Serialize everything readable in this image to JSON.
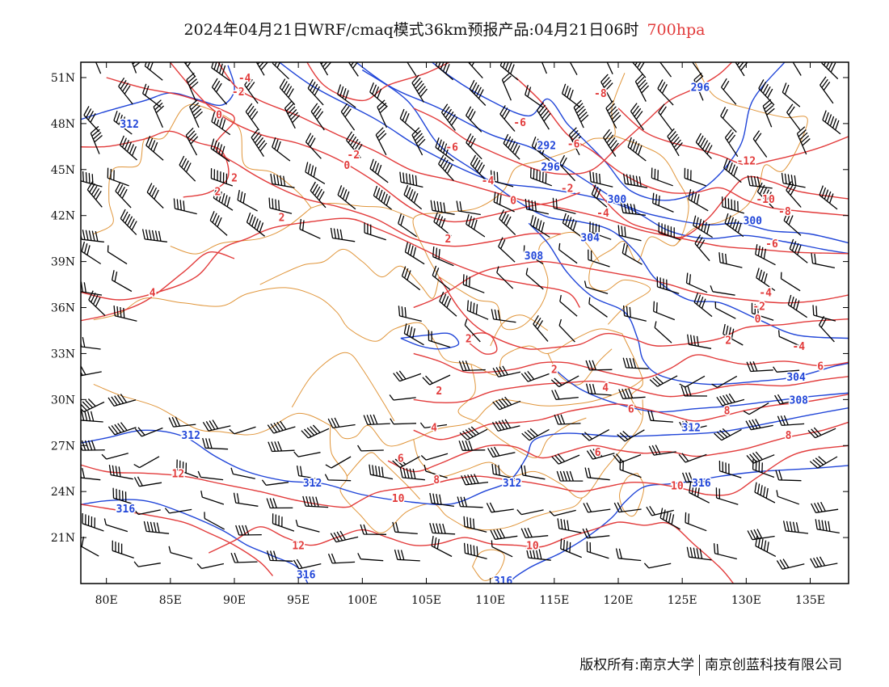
{
  "title": {
    "main": "2024年04月21日WRF/cmaq模式36km预报产品:04月21日06时",
    "level": "700hpa"
  },
  "footer": {
    "left": "版权所有:南京大学",
    "right": "南京创蓝科技有限公司"
  },
  "colors": {
    "temperature_contour": "#e23b3b",
    "height_contour": "#2045d8",
    "boundary": "#e0953a",
    "wind_barb": "#000000"
  },
  "map": {
    "lon_range": [
      78,
      138
    ],
    "lat_range": [
      18,
      52
    ],
    "lon_ticks": [
      "80E",
      "85E",
      "90E",
      "95E",
      "100E",
      "105E",
      "110E",
      "115E",
      "120E",
      "125E",
      "130E",
      "135E"
    ],
    "lat_ticks": [
      "51N",
      "48N",
      "45N",
      "42N",
      "39N",
      "36N",
      "33N",
      "30N",
      "27N",
      "24N",
      "21N"
    ],
    "temperature_labels": [
      "-4",
      "-2",
      "0",
      "2",
      "4",
      "6",
      "8",
      "10",
      "12",
      "-6",
      "-8",
      "-10",
      "-12"
    ],
    "height_labels": [
      "292",
      "296",
      "300",
      "304",
      "308",
      "312",
      "316"
    ]
  },
  "contour_label_marks": [
    {
      "text": "-4",
      "lon": 90.8,
      "lat": 51.0,
      "kind": "t"
    },
    {
      "text": "-2",
      "lon": 90.3,
      "lat": 50.1,
      "kind": "t"
    },
    {
      "text": "0",
      "lon": 88.8,
      "lat": 48.6,
      "kind": "t"
    },
    {
      "text": "312",
      "lon": 81.8,
      "lat": 48.0,
      "kind": "h"
    },
    {
      "text": "296",
      "lon": 126.4,
      "lat": 50.4,
      "kind": "h"
    },
    {
      "text": "-8",
      "lon": 118.6,
      "lat": 50.0,
      "kind": "t"
    },
    {
      "text": "-6",
      "lon": 112.3,
      "lat": 48.1,
      "kind": "t"
    },
    {
      "text": "-6",
      "lon": 107.0,
      "lat": 46.5,
      "kind": "t"
    },
    {
      "text": "-6",
      "lon": 116.5,
      "lat": 46.7,
      "kind": "t"
    },
    {
      "text": "292",
      "lon": 114.4,
      "lat": 46.6,
      "kind": "h"
    },
    {
      "text": "296",
      "lon": 114.7,
      "lat": 45.2,
      "kind": "h"
    },
    {
      "text": "-2",
      "lon": 99.3,
      "lat": 46.0,
      "kind": "t"
    },
    {
      "text": "0",
      "lon": 98.8,
      "lat": 45.3,
      "kind": "t"
    },
    {
      "text": "2",
      "lon": 90.0,
      "lat": 44.5,
      "kind": "t"
    },
    {
      "text": "2",
      "lon": 88.7,
      "lat": 43.6,
      "kind": "t"
    },
    {
      "text": "-4",
      "lon": 109.8,
      "lat": 44.3,
      "kind": "t"
    },
    {
      "text": "-2",
      "lon": 116.0,
      "lat": 43.8,
      "kind": "t"
    },
    {
      "text": "0",
      "lon": 111.8,
      "lat": 43.0,
      "kind": "t"
    },
    {
      "text": "300",
      "lon": 119.9,
      "lat": 43.1,
      "kind": "h"
    },
    {
      "text": "-4",
      "lon": 118.8,
      "lat": 42.2,
      "kind": "t"
    },
    {
      "text": "2",
      "lon": 93.7,
      "lat": 41.9,
      "kind": "t"
    },
    {
      "text": "2",
      "lon": 106.7,
      "lat": 40.5,
      "kind": "t"
    },
    {
      "text": "304",
      "lon": 117.8,
      "lat": 40.6,
      "kind": "h"
    },
    {
      "text": "308",
      "lon": 113.4,
      "lat": 39.4,
      "kind": "h"
    },
    {
      "text": "-12",
      "lon": 130.0,
      "lat": 45.6,
      "kind": "t"
    },
    {
      "text": "-10",
      "lon": 131.5,
      "lat": 43.1,
      "kind": "t"
    },
    {
      "text": "-8",
      "lon": 133.0,
      "lat": 42.3,
      "kind": "t"
    },
    {
      "text": "300",
      "lon": 130.5,
      "lat": 41.7,
      "kind": "h"
    },
    {
      "text": "-6",
      "lon": 132.0,
      "lat": 40.2,
      "kind": "t"
    },
    {
      "text": "4",
      "lon": 83.6,
      "lat": 37.0,
      "kind": "t"
    },
    {
      "text": "-4",
      "lon": 131.5,
      "lat": 37.0,
      "kind": "t"
    },
    {
      "text": "-2",
      "lon": 131.0,
      "lat": 36.1,
      "kind": "t"
    },
    {
      "text": "0",
      "lon": 130.9,
      "lat": 35.3,
      "kind": "t"
    },
    {
      "text": "2",
      "lon": 128.6,
      "lat": 33.9,
      "kind": "t"
    },
    {
      "text": "-4",
      "lon": 134.1,
      "lat": 33.5,
      "kind": "t"
    },
    {
      "text": "2",
      "lon": 108.3,
      "lat": 34.0,
      "kind": "t"
    },
    {
      "text": "2",
      "lon": 115.0,
      "lat": 32.0,
      "kind": "t"
    },
    {
      "text": "6",
      "lon": 135.8,
      "lat": 32.2,
      "kind": "t"
    },
    {
      "text": "304",
      "lon": 133.9,
      "lat": 31.5,
      "kind": "h"
    },
    {
      "text": "4",
      "lon": 119.0,
      "lat": 30.8,
      "kind": "t"
    },
    {
      "text": "2",
      "lon": 106.0,
      "lat": 30.6,
      "kind": "t"
    },
    {
      "text": "308",
      "lon": 134.1,
      "lat": 30.0,
      "kind": "h"
    },
    {
      "text": "6",
      "lon": 121.0,
      "lat": 29.4,
      "kind": "t"
    },
    {
      "text": "8",
      "lon": 128.5,
      "lat": 29.3,
      "kind": "t"
    },
    {
      "text": "4",
      "lon": 105.6,
      "lat": 28.2,
      "kind": "t"
    },
    {
      "text": "312",
      "lon": 86.6,
      "lat": 27.7,
      "kind": "h"
    },
    {
      "text": "312",
      "lon": 125.7,
      "lat": 28.2,
      "kind": "h"
    },
    {
      "text": "8",
      "lon": 133.3,
      "lat": 27.7,
      "kind": "t"
    },
    {
      "text": "6",
      "lon": 118.4,
      "lat": 26.6,
      "kind": "t"
    },
    {
      "text": "6",
      "lon": 103.0,
      "lat": 26.2,
      "kind": "t"
    },
    {
      "text": "8",
      "lon": 105.8,
      "lat": 24.8,
      "kind": "t"
    },
    {
      "text": "12",
      "lon": 85.6,
      "lat": 25.2,
      "kind": "t"
    },
    {
      "text": "312",
      "lon": 96.1,
      "lat": 24.6,
      "kind": "h"
    },
    {
      "text": "312",
      "lon": 111.7,
      "lat": 24.6,
      "kind": "h"
    },
    {
      "text": "316",
      "lon": 126.5,
      "lat": 24.6,
      "kind": "h"
    },
    {
      "text": "10",
      "lon": 124.6,
      "lat": 24.4,
      "kind": "t"
    },
    {
      "text": "10",
      "lon": 102.8,
      "lat": 23.6,
      "kind": "t"
    },
    {
      "text": "316",
      "lon": 81.5,
      "lat": 22.9,
      "kind": "h"
    },
    {
      "text": "12",
      "lon": 95.0,
      "lat": 20.5,
      "kind": "t"
    },
    {
      "text": "10",
      "lon": 113.3,
      "lat": 20.5,
      "kind": "t"
    },
    {
      "text": "316",
      "lon": 95.6,
      "lat": 18.6,
      "kind": "h"
    },
    {
      "text": "316",
      "lon": 111.0,
      "lat": 18.2,
      "kind": "h"
    }
  ]
}
